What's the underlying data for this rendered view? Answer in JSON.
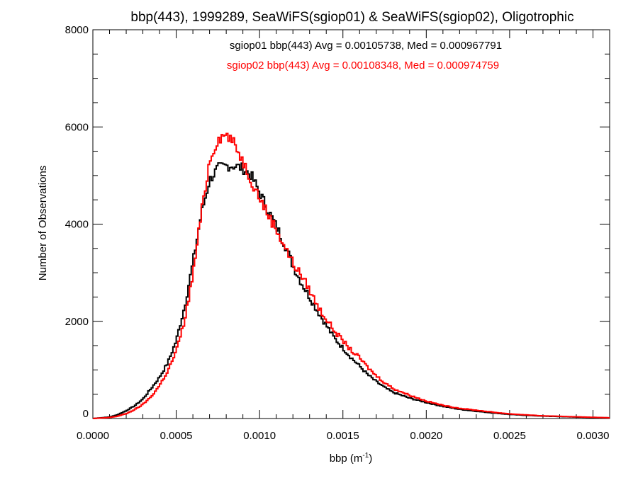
{
  "chart_data": {
    "type": "line",
    "step": true,
    "title": "bbp(443), 1999289, SeaWiFS(sgiop01) & SeaWiFS(sgiop02), Oligotrophic",
    "xlabel_base": "bbp (m",
    "xlabel_sup": "-1",
    "xlabel_end": ")",
    "ylabel": "Number of Observations",
    "xlim": [
      0.0,
      0.0031
    ],
    "ylim": [
      0,
      8000
    ],
    "xticks": [
      0.0,
      0.0005,
      0.001,
      0.0015,
      0.002,
      0.0025,
      0.003
    ],
    "xtick_labels": [
      "0.0000",
      "0.0005",
      "0.0010",
      "0.0015",
      "0.0020",
      "0.0025",
      "0.0030"
    ],
    "yticks": [
      0,
      2000,
      4000,
      6000,
      8000
    ],
    "ytick_labels": [
      "0",
      "2000",
      "4000",
      "6000",
      "8000"
    ],
    "grid": false,
    "series": [
      {
        "name": "sgiop01",
        "legend": "sgiop01 bbp(443) Avg = 0.00105738, Med = 0.000967791",
        "color": "#000000",
        "x": [
          0.0,
          0.0001,
          0.00015,
          0.0002,
          0.00025,
          0.0003,
          0.00035,
          0.0004,
          0.00045,
          0.0005,
          0.00055,
          0.0006,
          0.00065,
          0.0007,
          0.00075,
          0.0008,
          0.00085,
          0.0009,
          0.00095,
          0.001,
          0.00105,
          0.0011,
          0.00115,
          0.0012,
          0.00125,
          0.0013,
          0.00135,
          0.0014,
          0.00145,
          0.0015,
          0.00155,
          0.0016,
          0.00165,
          0.0017,
          0.00175,
          0.0018,
          0.0019,
          0.002,
          0.0021,
          0.0022,
          0.0023,
          0.0024,
          0.0025,
          0.0026,
          0.0027,
          0.0028,
          0.0029,
          0.003,
          0.0031
        ],
        "y": [
          0,
          30,
          80,
          160,
          260,
          400,
          620,
          850,
          1150,
          1600,
          2300,
          3200,
          4200,
          4900,
          5150,
          5200,
          5200,
          5150,
          5000,
          4650,
          4300,
          3950,
          3600,
          3150,
          2800,
          2500,
          2200,
          1920,
          1650,
          1450,
          1250,
          1080,
          900,
          760,
          640,
          540,
          420,
          330,
          250,
          190,
          150,
          115,
          85,
          65,
          50,
          40,
          30,
          20,
          15
        ]
      },
      {
        "name": "sgiop02",
        "legend": "sgiop02 bbp(443) Avg = 0.00108348, Med = 0.000974759",
        "color": "#ff0000",
        "x": [
          0.0,
          0.0001,
          0.00015,
          0.0002,
          0.00025,
          0.0003,
          0.00035,
          0.0004,
          0.00045,
          0.0005,
          0.00055,
          0.0006,
          0.00065,
          0.0007,
          0.00075,
          0.0008,
          0.00085,
          0.0009,
          0.00095,
          0.001,
          0.00105,
          0.0011,
          0.00115,
          0.0012,
          0.00125,
          0.0013,
          0.00135,
          0.0014,
          0.00145,
          0.0015,
          0.00155,
          0.0016,
          0.00165,
          0.0017,
          0.00175,
          0.0018,
          0.0019,
          0.002,
          0.0021,
          0.0022,
          0.0023,
          0.0024,
          0.0025,
          0.0026,
          0.0027,
          0.0028,
          0.0029,
          0.003,
          0.0031
        ],
        "y": [
          0,
          20,
          50,
          100,
          180,
          290,
          450,
          680,
          980,
          1380,
          2000,
          2950,
          4200,
          5300,
          5750,
          5850,
          5650,
          5300,
          4900,
          4550,
          4200,
          3900,
          3550,
          3200,
          2950,
          2650,
          2300,
          2050,
          1800,
          1600,
          1400,
          1250,
          1050,
          880,
          740,
          620,
          480,
          360,
          270,
          210,
          170,
          130,
          95,
          75,
          55,
          45,
          35,
          25,
          15
        ]
      }
    ]
  }
}
